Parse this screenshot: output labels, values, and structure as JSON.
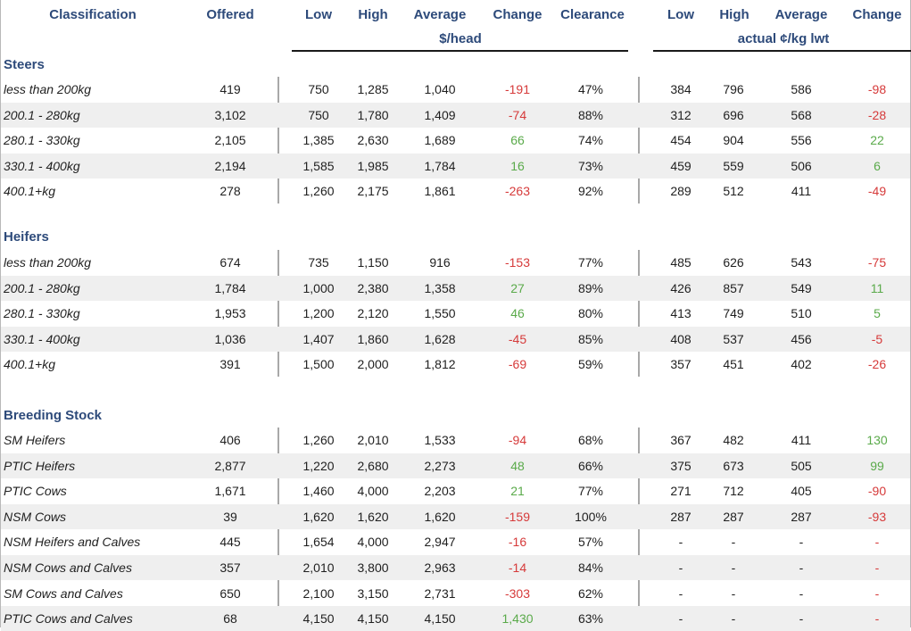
{
  "headers": {
    "classification": "Classification",
    "offered": "Offered",
    "low": "Low",
    "high": "High",
    "average": "Average",
    "change": "Change",
    "clearance": "Clearance",
    "unit_head": "$/head",
    "low2": "Low",
    "high2": "High",
    "average2": "Average",
    "change2": "Change",
    "unit_kg": "actual ¢/kg lwt"
  },
  "sections": [
    {
      "title": "Steers",
      "rows": [
        {
          "label": "less than 200kg",
          "offered": "419",
          "low": "750",
          "high": "1,285",
          "avg": "1,040",
          "change": "-191",
          "clearance": "47%",
          "kg_low": "384",
          "kg_high": "796",
          "kg_avg": "586",
          "kg_change": "-98"
        },
        {
          "label": "200.1 - 280kg",
          "offered": "3,102",
          "low": "750",
          "high": "1,780",
          "avg": "1,409",
          "change": "-74",
          "clearance": "88%",
          "kg_low": "312",
          "kg_high": "696",
          "kg_avg": "568",
          "kg_change": "-28"
        },
        {
          "label": "280.1 - 330kg",
          "offered": "2,105",
          "low": "1,385",
          "high": "2,630",
          "avg": "1,689",
          "change": "66",
          "clearance": "74%",
          "kg_low": "454",
          "kg_high": "904",
          "kg_avg": "556",
          "kg_change": "22"
        },
        {
          "label": "330.1 - 400kg",
          "offered": "2,194",
          "low": "1,585",
          "high": "1,985",
          "avg": "1,784",
          "change": "16",
          "clearance": "73%",
          "kg_low": "459",
          "kg_high": "559",
          "kg_avg": "506",
          "kg_change": "6"
        },
        {
          "label": "400.1+kg",
          "offered": "278",
          "low": "1,260",
          "high": "2,175",
          "avg": "1,861",
          "change": "-263",
          "clearance": "92%",
          "kg_low": "289",
          "kg_high": "512",
          "kg_avg": "411",
          "kg_change": "-49"
        }
      ]
    },
    {
      "title": "Heifers",
      "rows": [
        {
          "label": "less than 200kg",
          "offered": "674",
          "low": "735",
          "high": "1,150",
          "avg": "916",
          "change": "-153",
          "clearance": "77%",
          "kg_low": "485",
          "kg_high": "626",
          "kg_avg": "543",
          "kg_change": "-75"
        },
        {
          "label": "200.1 - 280kg",
          "offered": "1,784",
          "low": "1,000",
          "high": "2,380",
          "avg": "1,358",
          "change": "27",
          "clearance": "89%",
          "kg_low": "426",
          "kg_high": "857",
          "kg_avg": "549",
          "kg_change": "11"
        },
        {
          "label": "280.1 - 330kg",
          "offered": "1,953",
          "low": "1,200",
          "high": "2,120",
          "avg": "1,550",
          "change": "46",
          "clearance": "80%",
          "kg_low": "413",
          "kg_high": "749",
          "kg_avg": "510",
          "kg_change": "5"
        },
        {
          "label": "330.1 - 400kg",
          "offered": "1,036",
          "low": "1,407",
          "high": "1,860",
          "avg": "1,628",
          "change": "-45",
          "clearance": "85%",
          "kg_low": "408",
          "kg_high": "537",
          "kg_avg": "456",
          "kg_change": "-5"
        },
        {
          "label": "400.1+kg",
          "offered": "391",
          "low": "1,500",
          "high": "2,000",
          "avg": "1,812",
          "change": "-69",
          "clearance": "59%",
          "kg_low": "357",
          "kg_high": "451",
          "kg_avg": "402",
          "kg_change": "-26"
        }
      ]
    },
    {
      "title": "Breeding Stock",
      "rows": [
        {
          "label": "SM Heifers",
          "offered": "406",
          "low": "1,260",
          "high": "2,010",
          "avg": "1,533",
          "change": "-94",
          "clearance": "68%",
          "kg_low": "367",
          "kg_high": "482",
          "kg_avg": "411",
          "kg_change": "130"
        },
        {
          "label": "PTIC Heifers",
          "offered": "2,877",
          "low": "1,220",
          "high": "2,680",
          "avg": "2,273",
          "change": "48",
          "clearance": "66%",
          "kg_low": "375",
          "kg_high": "673",
          "kg_avg": "505",
          "kg_change": "99"
        },
        {
          "label": "PTIC Cows",
          "offered": "1,671",
          "low": "1,460",
          "high": "4,000",
          "avg": "2,203",
          "change": "21",
          "clearance": "77%",
          "kg_low": "271",
          "kg_high": "712",
          "kg_avg": "405",
          "kg_change": "-90"
        },
        {
          "label": "NSM Cows",
          "offered": "39",
          "low": "1,620",
          "high": "1,620",
          "avg": "1,620",
          "change": "-159",
          "clearance": "100%",
          "kg_low": "287",
          "kg_high": "287",
          "kg_avg": "287",
          "kg_change": "-93"
        },
        {
          "label": "NSM Heifers and Calves",
          "offered": "445",
          "low": "1,654",
          "high": "4,000",
          "avg": "2,947",
          "change": "-16",
          "clearance": "57%",
          "kg_low": "-",
          "kg_high": "-",
          "kg_avg": "-",
          "kg_change": "-"
        },
        {
          "label": "NSM Cows and Calves",
          "offered": "357",
          "low": "2,010",
          "high": "3,800",
          "avg": "2,963",
          "change": "-14",
          "clearance": "84%",
          "kg_low": "-",
          "kg_high": "-",
          "kg_avg": "-",
          "kg_change": "-"
        },
        {
          "label": "SM Cows and Calves",
          "offered": "650",
          "low": "2,100",
          "high": "3,150",
          "avg": "2,731",
          "change": "-303",
          "clearance": "62%",
          "kg_low": "-",
          "kg_high": "-",
          "kg_avg": "-",
          "kg_change": "-"
        },
        {
          "label": "PTIC Cows and Calves",
          "offered": "68",
          "low": "4,150",
          "high": "4,150",
          "avg": "4,150",
          "change": "1,430",
          "clearance": "63%",
          "kg_low": "-",
          "kg_high": "-",
          "kg_avg": "-",
          "kg_change": "-"
        }
      ]
    }
  ],
  "colors": {
    "header_text": "#2d4a7a",
    "negative": "#d63a3a",
    "positive": "#5aaa4a",
    "alt_row": "#efefef"
  }
}
